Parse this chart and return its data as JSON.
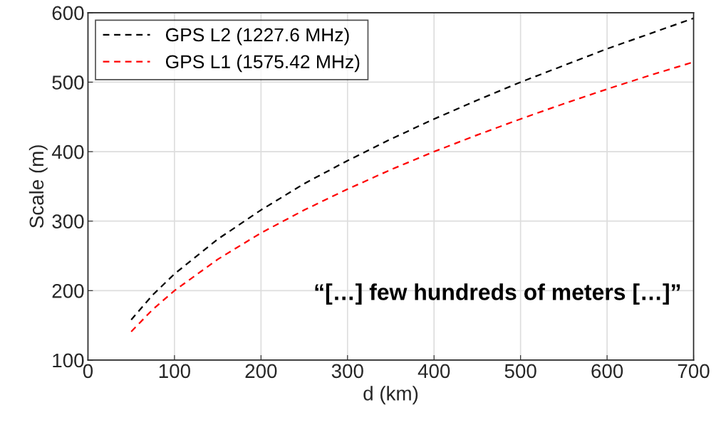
{
  "chart_data": {
    "type": "line",
    "xlabel": "d (km)",
    "ylabel": "Scale (m)",
    "x": [
      50,
      75,
      100,
      150,
      200,
      250,
      300,
      350,
      400,
      450,
      500,
      550,
      600,
      650,
      700
    ],
    "series": [
      {
        "name": "GPS L2 (1227.6 MHz)",
        "color": "#000000",
        "values": [
          158,
          194,
          224,
          274,
          316,
          354,
          387,
          418,
          447,
          474,
          500,
          524,
          548,
          570,
          592
        ]
      },
      {
        "name": "GPS L1 (1575.42 MHz)",
        "color": "#ff0000",
        "values": [
          141,
          173,
          200,
          245,
          283,
          316,
          346,
          374,
          400,
          424,
          447,
          469,
          490,
          510,
          529
        ]
      }
    ],
    "xlim": [
      0,
      700
    ],
    "xticks": [
      0,
      100,
      200,
      300,
      400,
      500,
      600,
      700
    ],
    "ylim": [
      100,
      600
    ],
    "yticks": [
      100,
      200,
      300,
      400,
      500,
      600
    ],
    "grid": true,
    "legend": "top left",
    "line_style": "dashed",
    "marker": "none",
    "annotations": [
      "“[…] few hundreds of meters […]”"
    ]
  }
}
